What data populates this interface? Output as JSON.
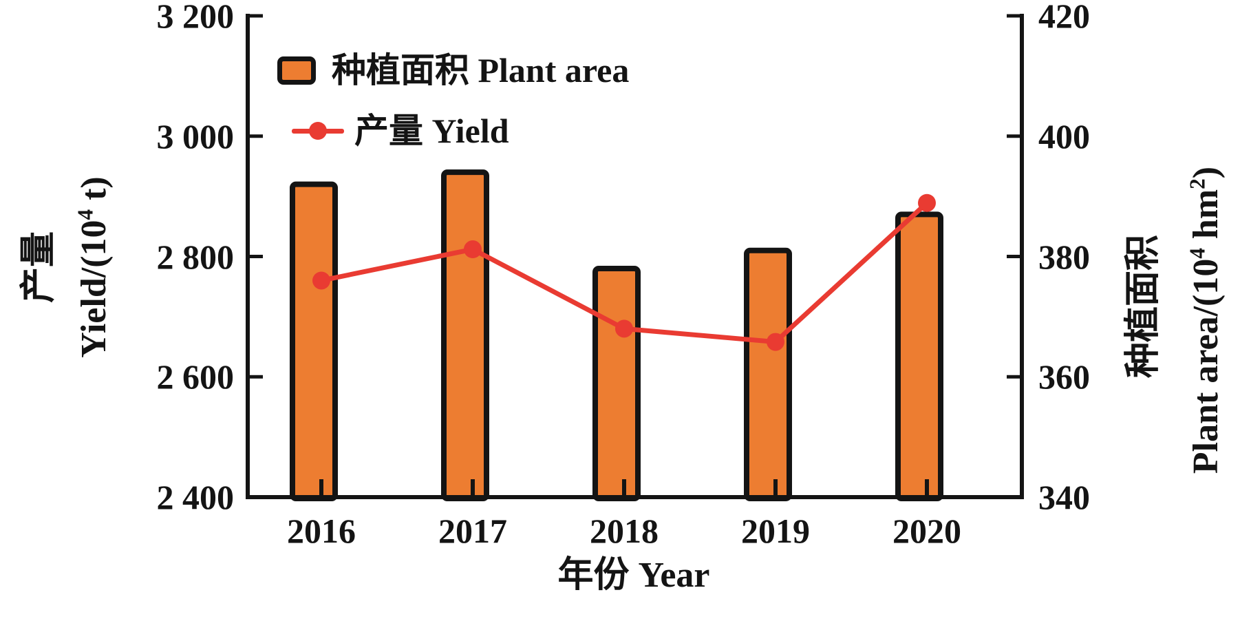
{
  "figure": {
    "background": "#FFFFFF",
    "legend": {
      "items": [
        {
          "symbol": "bar-swatch",
          "label": "种植面积 Plant area"
        },
        {
          "symbol": "line-dot",
          "label": "产量 Yield"
        }
      ]
    },
    "axes": {
      "x": {
        "title": "年份 Year",
        "categories": [
          "2016",
          "2017",
          "2018",
          "2019",
          "2020"
        ]
      },
      "left": {
        "title_zh": "产量",
        "title_en_pre": "Yield/(10",
        "title_en_sup": "4",
        "title_en_post": " t)",
        "ticks": [
          "3 200",
          "3 000",
          "2 800",
          "2 600",
          "2 400"
        ]
      },
      "right": {
        "title_zh": "种植面积",
        "title_en_pre": "Plant area/(10",
        "title_en_sup": "4",
        "title_en_mid": " hm",
        "title_en_sup2": "2",
        "title_en_post": ")",
        "ticks": [
          "420",
          "400",
          "380",
          "360",
          "340"
        ]
      }
    }
  },
  "chart_data": {
    "type": "combo",
    "categories": [
      "2016",
      "2017",
      "2018",
      "2019",
      "2020"
    ],
    "series": [
      {
        "name": "种植面积 Plant area",
        "type": "bar",
        "y_axis": "right",
        "values": [
          392,
          394,
          378,
          381,
          387
        ],
        "color": "#ED7D31",
        "border_color": "#141414"
      },
      {
        "name": "产量 Yield",
        "type": "line",
        "y_axis": "left",
        "values": [
          2760,
          2812,
          2680,
          2658,
          2889
        ],
        "color": "#E93B32"
      }
    ],
    "left_axis": {
      "label": "产量 Yield/(10⁴ t)",
      "range": [
        2400,
        3200
      ],
      "tick_step": 200
    },
    "right_axis": {
      "label": "种植面积 Plant area/(10⁴ hm²)",
      "range": [
        340,
        420
      ],
      "tick_step": 20
    },
    "x_label": "年份 Year",
    "legend_position": "top-left-inside",
    "grid": false
  }
}
